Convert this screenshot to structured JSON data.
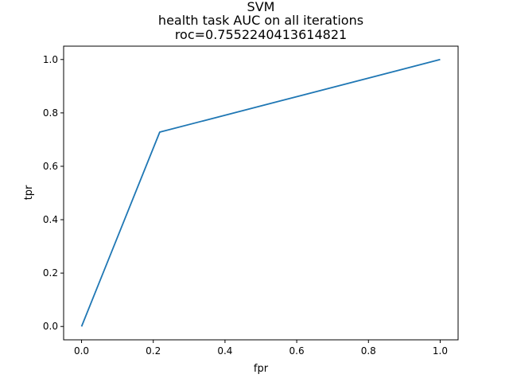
{
  "chart_data": {
    "type": "line",
    "title_lines": [
      "SVM",
      "health task AUC on all iterations",
      "roc=0.7552240413614821"
    ],
    "xlabel": "fpr",
    "ylabel": "tpr",
    "xlim": [
      -0.05,
      1.05
    ],
    "ylim": [
      -0.05,
      1.05
    ],
    "xticks": [
      0.0,
      0.2,
      0.4,
      0.6,
      0.8,
      1.0
    ],
    "yticks": [
      0.0,
      0.2,
      0.4,
      0.6,
      0.8,
      1.0
    ],
    "xtick_labels": [
      "0.0",
      "0.2",
      "0.4",
      "0.6",
      "0.8",
      "1.0"
    ],
    "ytick_labels": [
      "0.0",
      "0.2",
      "0.4",
      "0.6",
      "0.8",
      "1.0"
    ],
    "grid": false,
    "series": [
      {
        "x": [
          0.0,
          0.218,
          1.0
        ],
        "y": [
          0.0,
          0.728,
          1.0
        ],
        "color": "#1f77b4"
      }
    ]
  }
}
